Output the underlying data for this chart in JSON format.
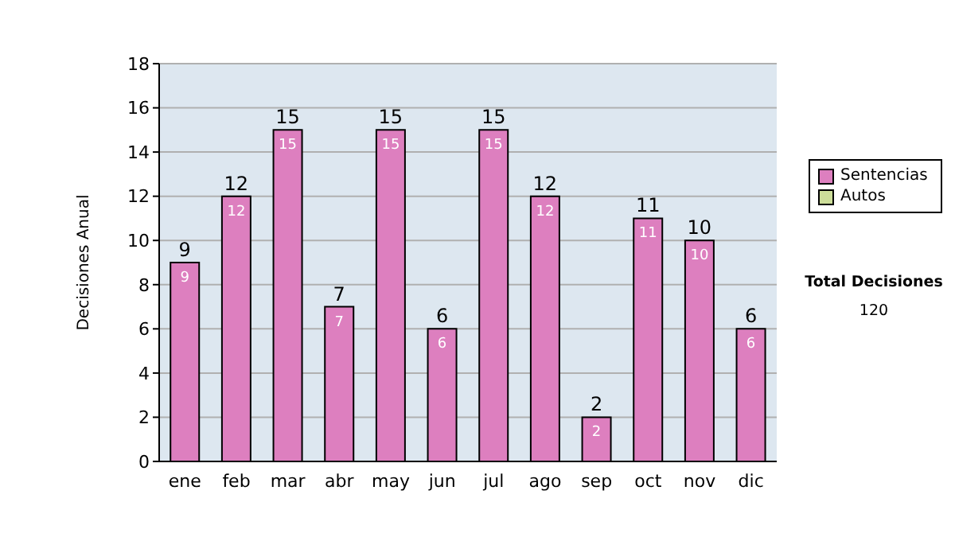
{
  "chart_data": {
    "type": "bar",
    "stacked": true,
    "ylabel": "Decisiones Anual",
    "categories": [
      "ene",
      "feb",
      "mar",
      "abr",
      "may",
      "jun",
      "jul",
      "ago",
      "sep",
      "oct",
      "nov",
      "dic"
    ],
    "series": [
      {
        "name": "Sentencias",
        "color": "#dd7fbf",
        "values": [
          9,
          12,
          15,
          7,
          15,
          6,
          15,
          12,
          2,
          11,
          10,
          6
        ],
        "value_labels": [
          "9",
          "12",
          "15",
          "7",
          "15",
          "6",
          "15",
          "12",
          "2",
          "11",
          "10",
          "6"
        ]
      },
      {
        "name": "Autos",
        "color": "#ccdd99",
        "values": [
          0,
          0,
          0,
          0,
          0,
          0,
          0,
          0,
          0,
          0,
          0,
          0
        ]
      }
    ],
    "ylim": [
      0,
      18
    ],
    "yticks": [
      0,
      2,
      4,
      6,
      8,
      10,
      12,
      14,
      16,
      18
    ],
    "grid": "y",
    "legend": "right",
    "totals": [
      "9",
      "12",
      "15",
      "7",
      "15",
      "6",
      "15",
      "12",
      "2",
      "11",
      "10",
      "6"
    ],
    "annotations": [
      "Total Decisiones",
      "120"
    ]
  }
}
